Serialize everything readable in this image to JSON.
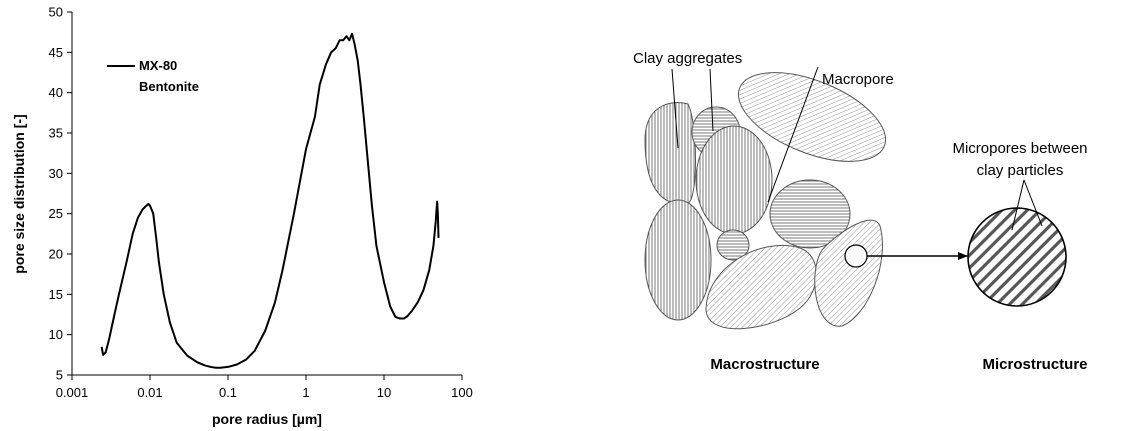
{
  "chart_data": {
    "type": "line",
    "xlabel": "pore radius [µm]",
    "ylabel": "pore size distribution [-]",
    "xscale": "log",
    "xlim": [
      0.001,
      100
    ],
    "ylim": [
      5,
      50
    ],
    "xticks": [
      "0.001",
      "0.01",
      "0.1",
      "1",
      "10",
      "100"
    ],
    "yticks": [
      "5",
      "10",
      "15",
      "20",
      "25",
      "30",
      "35",
      "40",
      "45",
      "50"
    ],
    "grid": false,
    "legend_position": "top-left",
    "series": [
      {
        "name": "MX-80 Bentonite",
        "legend_lines": [
          "MX-80",
          "Bentonite"
        ],
        "color": "#000000",
        "x": [
          0.0024,
          0.0025,
          0.0027,
          0.003,
          0.0035,
          0.004,
          0.005,
          0.006,
          0.007,
          0.008,
          0.009,
          0.0095,
          0.01,
          0.011,
          0.012,
          0.013,
          0.015,
          0.018,
          0.022,
          0.03,
          0.04,
          0.05,
          0.06,
          0.07,
          0.08,
          0.1,
          0.13,
          0.17,
          0.22,
          0.3,
          0.4,
          0.5,
          0.7,
          1.0,
          1.3,
          1.5,
          1.8,
          2.1,
          2.4,
          2.7,
          3.0,
          3.3,
          3.6,
          3.9,
          4.2,
          4.6,
          5.0,
          5.5,
          6.0,
          7.0,
          8.0,
          10,
          12,
          14,
          16,
          18,
          20,
          23,
          27,
          32,
          38,
          43,
          46,
          48,
          49,
          50
        ],
        "y": [
          8.5,
          7.5,
          7.8,
          9.5,
          12.5,
          15.0,
          19.0,
          22.5,
          24.5,
          25.5,
          26.0,
          26.2,
          26.0,
          25.0,
          22.0,
          19.0,
          15.0,
          11.5,
          9.0,
          7.4,
          6.6,
          6.2,
          6.0,
          5.9,
          5.9,
          6.0,
          6.3,
          6.9,
          8.0,
          10.5,
          14.0,
          18.0,
          25.0,
          33.0,
          37.0,
          41.0,
          43.5,
          45.0,
          45.5,
          46.5,
          46.5,
          47.0,
          46.5,
          47.3,
          46.0,
          44.0,
          41.0,
          37.0,
          33.0,
          26.0,
          21.0,
          16.5,
          13.5,
          12.2,
          12.0,
          12.0,
          12.3,
          13.0,
          14.0,
          15.5,
          18.0,
          21.0,
          24.0,
          26.5,
          25.0,
          22.0
        ]
      }
    ]
  },
  "diagram": {
    "labels": {
      "clay_aggregates": "Clay aggregates",
      "macropore": "Macropore",
      "micropores_line1": "Micropores between",
      "micropores_line2": "clay particles"
    },
    "captions": {
      "macro": "Macrostructure",
      "micro": "Microstructure"
    }
  }
}
